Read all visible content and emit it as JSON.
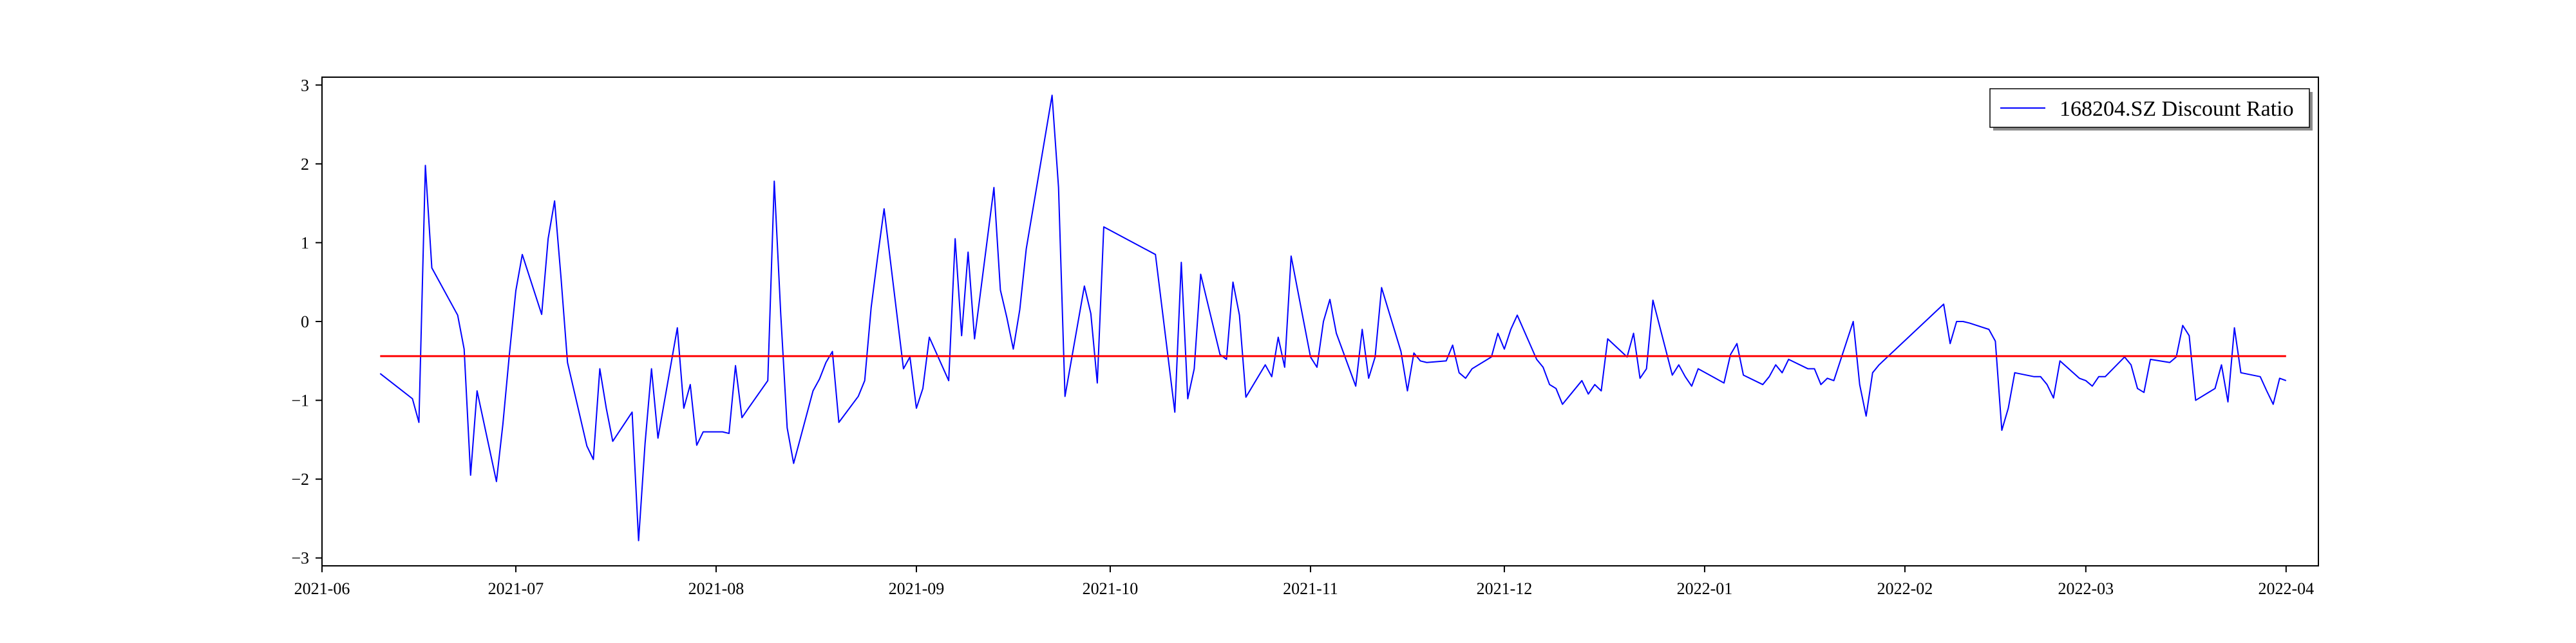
{
  "chart_data": {
    "type": "line",
    "x_axis": {
      "type": "date",
      "range": [
        "2021-06-01",
        "2022-04-06"
      ],
      "ticks": [
        "2021-06-01",
        "2021-07-01",
        "2021-08-01",
        "2021-09-01",
        "2021-10-01",
        "2021-11-01",
        "2021-12-01",
        "2022-01-01",
        "2022-02-01",
        "2022-03-01",
        "2022-04-01"
      ],
      "tick_labels": [
        "2021-06",
        "2021-07",
        "2021-08",
        "2021-09",
        "2021-10",
        "2021-11",
        "2021-12",
        "2022-01",
        "2022-02",
        "2022-03",
        "2022-04"
      ]
    },
    "y_axis": {
      "range": [
        -3.1,
        3.1
      ],
      "ticks": [
        -3,
        -2,
        -1,
        0,
        1,
        2,
        3
      ],
      "tick_labels": [
        "−3",
        "−2",
        "−1",
        "0",
        "1",
        "2",
        "3"
      ]
    },
    "grid": false,
    "legend": {
      "position": "top-right",
      "shadow": true
    },
    "series": [
      {
        "name": "168204.SZ Discount Ratio",
        "color": "#0000ff",
        "points": [
          [
            "2021-06-10",
            -0.66
          ],
          [
            "2021-06-15",
            -0.98
          ],
          [
            "2021-06-16",
            -1.28
          ],
          [
            "2021-06-17",
            1.98
          ],
          [
            "2021-06-18",
            0.68
          ],
          [
            "2021-06-22",
            0.08
          ],
          [
            "2021-06-23",
            -0.35
          ],
          [
            "2021-06-24",
            -1.95
          ],
          [
            "2021-06-25",
            -0.88
          ],
          [
            "2021-06-28",
            -2.03
          ],
          [
            "2021-06-29",
            -1.3
          ],
          [
            "2021-06-30",
            -0.42
          ],
          [
            "2021-07-01",
            0.39
          ],
          [
            "2021-07-02",
            0.85
          ],
          [
            "2021-07-05",
            0.09
          ],
          [
            "2021-07-06",
            1.05
          ],
          [
            "2021-07-07",
            1.53
          ],
          [
            "2021-07-08",
            0.55
          ],
          [
            "2021-07-09",
            -0.52
          ],
          [
            "2021-07-12",
            -1.58
          ],
          [
            "2021-07-13",
            -1.75
          ],
          [
            "2021-07-14",
            -0.6
          ],
          [
            "2021-07-15",
            -1.1
          ],
          [
            "2021-07-16",
            -1.52
          ],
          [
            "2021-07-19",
            -1.15
          ],
          [
            "2021-07-20",
            -2.78
          ],
          [
            "2021-07-21",
            -1.55
          ],
          [
            "2021-07-22",
            -0.6
          ],
          [
            "2021-07-23",
            -1.48
          ],
          [
            "2021-07-26",
            -0.08
          ],
          [
            "2021-07-27",
            -1.1
          ],
          [
            "2021-07-28",
            -0.8
          ],
          [
            "2021-07-29",
            -1.57
          ],
          [
            "2021-07-30",
            -1.4
          ],
          [
            "2021-08-02",
            -1.4
          ],
          [
            "2021-08-03",
            -1.42
          ],
          [
            "2021-08-04",
            -0.56
          ],
          [
            "2021-08-05",
            -1.22
          ],
          [
            "2021-08-06",
            -1.1
          ],
          [
            "2021-08-09",
            -0.75
          ],
          [
            "2021-08-10",
            1.78
          ],
          [
            "2021-08-11",
            0.1
          ],
          [
            "2021-08-12",
            -1.35
          ],
          [
            "2021-08-13",
            -1.8
          ],
          [
            "2021-08-16",
            -0.88
          ],
          [
            "2021-08-17",
            -0.73
          ],
          [
            "2021-08-18",
            -0.52
          ],
          [
            "2021-08-19",
            -0.38
          ],
          [
            "2021-08-20",
            -1.28
          ],
          [
            "2021-08-23",
            -0.95
          ],
          [
            "2021-08-24",
            -0.75
          ],
          [
            "2021-08-25",
            0.18
          ],
          [
            "2021-08-26",
            0.82
          ],
          [
            "2021-08-27",
            1.43
          ],
          [
            "2021-08-30",
            -0.6
          ],
          [
            "2021-08-31",
            -0.45
          ],
          [
            "2021-09-01",
            -1.1
          ],
          [
            "2021-09-02",
            -0.85
          ],
          [
            "2021-09-03",
            -0.2
          ],
          [
            "2021-09-06",
            -0.75
          ],
          [
            "2021-09-07",
            1.05
          ],
          [
            "2021-09-08",
            -0.18
          ],
          [
            "2021-09-09",
            0.88
          ],
          [
            "2021-09-10",
            -0.22
          ],
          [
            "2021-09-13",
            1.7
          ],
          [
            "2021-09-14",
            0.4
          ],
          [
            "2021-09-15",
            0.05
          ],
          [
            "2021-09-16",
            -0.35
          ],
          [
            "2021-09-17",
            0.15
          ],
          [
            "2021-09-18",
            0.92
          ],
          [
            "2021-09-22",
            2.87
          ],
          [
            "2021-09-23",
            1.7
          ],
          [
            "2021-09-24",
            -0.95
          ],
          [
            "2021-09-27",
            0.45
          ],
          [
            "2021-09-28",
            0.1
          ],
          [
            "2021-09-29",
            -0.78
          ],
          [
            "2021-09-30",
            1.2
          ],
          [
            "2021-10-08",
            0.85
          ],
          [
            "2021-10-11",
            -1.15
          ],
          [
            "2021-10-12",
            0.75
          ],
          [
            "2021-10-13",
            -0.98
          ],
          [
            "2021-10-14",
            -0.6
          ],
          [
            "2021-10-15",
            0.6
          ],
          [
            "2021-10-18",
            -0.42
          ],
          [
            "2021-10-19",
            -0.48
          ],
          [
            "2021-10-20",
            0.5
          ],
          [
            "2021-10-21",
            0.08
          ],
          [
            "2021-10-22",
            -0.96
          ],
          [
            "2021-10-25",
            -0.55
          ],
          [
            "2021-10-26",
            -0.7
          ],
          [
            "2021-10-27",
            -0.2
          ],
          [
            "2021-10-28",
            -0.58
          ],
          [
            "2021-10-29",
            0.83
          ],
          [
            "2021-11-01",
            -0.45
          ],
          [
            "2021-11-02",
            -0.58
          ],
          [
            "2021-11-03",
            0.0
          ],
          [
            "2021-11-04",
            0.28
          ],
          [
            "2021-11-05",
            -0.15
          ],
          [
            "2021-11-08",
            -0.82
          ],
          [
            "2021-11-09",
            -0.1
          ],
          [
            "2021-11-10",
            -0.72
          ],
          [
            "2021-11-11",
            -0.45
          ],
          [
            "2021-11-12",
            0.43
          ],
          [
            "2021-11-15",
            -0.38
          ],
          [
            "2021-11-16",
            -0.88
          ],
          [
            "2021-11-17",
            -0.4
          ],
          [
            "2021-11-18",
            -0.5
          ],
          [
            "2021-11-19",
            -0.52
          ],
          [
            "2021-11-22",
            -0.5
          ],
          [
            "2021-11-23",
            -0.3
          ],
          [
            "2021-11-24",
            -0.65
          ],
          [
            "2021-11-25",
            -0.72
          ],
          [
            "2021-11-26",
            -0.6
          ],
          [
            "2021-11-29",
            -0.45
          ],
          [
            "2021-11-30",
            -0.15
          ],
          [
            "2021-12-01",
            -0.35
          ],
          [
            "2021-12-02",
            -0.1
          ],
          [
            "2021-12-03",
            0.08
          ],
          [
            "2021-12-06",
            -0.48
          ],
          [
            "2021-12-07",
            -0.58
          ],
          [
            "2021-12-08",
            -0.8
          ],
          [
            "2021-12-09",
            -0.85
          ],
          [
            "2021-12-10",
            -1.05
          ],
          [
            "2021-12-13",
            -0.75
          ],
          [
            "2021-12-14",
            -0.92
          ],
          [
            "2021-12-15",
            -0.8
          ],
          [
            "2021-12-16",
            -0.88
          ],
          [
            "2021-12-17",
            -0.22
          ],
          [
            "2021-12-20",
            -0.45
          ],
          [
            "2021-12-21",
            -0.15
          ],
          [
            "2021-12-22",
            -0.72
          ],
          [
            "2021-12-23",
            -0.6
          ],
          [
            "2021-12-24",
            0.27
          ],
          [
            "2021-12-27",
            -0.68
          ],
          [
            "2021-12-28",
            -0.55
          ],
          [
            "2021-12-29",
            -0.7
          ],
          [
            "2021-12-30",
            -0.82
          ],
          [
            "2021-12-31",
            -0.6
          ],
          [
            "2022-01-04",
            -0.78
          ],
          [
            "2022-01-05",
            -0.42
          ],
          [
            "2022-01-06",
            -0.28
          ],
          [
            "2022-01-07",
            -0.68
          ],
          [
            "2022-01-10",
            -0.8
          ],
          [
            "2022-01-11",
            -0.7
          ],
          [
            "2022-01-12",
            -0.55
          ],
          [
            "2022-01-13",
            -0.65
          ],
          [
            "2022-01-14",
            -0.48
          ],
          [
            "2022-01-17",
            -0.6
          ],
          [
            "2022-01-18",
            -0.6
          ],
          [
            "2022-01-19",
            -0.8
          ],
          [
            "2022-01-20",
            -0.72
          ],
          [
            "2022-01-21",
            -0.75
          ],
          [
            "2022-01-24",
            0.0
          ],
          [
            "2022-01-25",
            -0.8
          ],
          [
            "2022-01-26",
            -1.2
          ],
          [
            "2022-01-27",
            -0.65
          ],
          [
            "2022-01-28",
            -0.55
          ],
          [
            "2022-02-07",
            0.22
          ],
          [
            "2022-02-08",
            -0.28
          ],
          [
            "2022-02-09",
            0.0
          ],
          [
            "2022-02-10",
            0.0
          ],
          [
            "2022-02-11",
            -0.02
          ],
          [
            "2022-02-14",
            -0.1
          ],
          [
            "2022-02-15",
            -0.25
          ],
          [
            "2022-02-16",
            -1.38
          ],
          [
            "2022-02-17",
            -1.1
          ],
          [
            "2022-02-18",
            -0.65
          ],
          [
            "2022-02-21",
            -0.7
          ],
          [
            "2022-02-22",
            -0.7
          ],
          [
            "2022-02-23",
            -0.8
          ],
          [
            "2022-02-24",
            -0.97
          ],
          [
            "2022-02-25",
            -0.5
          ],
          [
            "2022-02-28",
            -0.72
          ],
          [
            "2022-03-01",
            -0.75
          ],
          [
            "2022-03-02",
            -0.82
          ],
          [
            "2022-03-03",
            -0.7
          ],
          [
            "2022-03-04",
            -0.7
          ],
          [
            "2022-03-07",
            -0.45
          ],
          [
            "2022-03-08",
            -0.55
          ],
          [
            "2022-03-09",
            -0.85
          ],
          [
            "2022-03-10",
            -0.9
          ],
          [
            "2022-03-11",
            -0.48
          ],
          [
            "2022-03-14",
            -0.52
          ],
          [
            "2022-03-15",
            -0.45
          ],
          [
            "2022-03-16",
            -0.05
          ],
          [
            "2022-03-17",
            -0.18
          ],
          [
            "2022-03-18",
            -1.0
          ],
          [
            "2022-03-21",
            -0.85
          ],
          [
            "2022-03-22",
            -0.55
          ],
          [
            "2022-03-23",
            -1.02
          ],
          [
            "2022-03-24",
            -0.08
          ],
          [
            "2022-03-25",
            -0.65
          ],
          [
            "2022-03-28",
            -0.7
          ],
          [
            "2022-03-29",
            -0.88
          ],
          [
            "2022-03-30",
            -1.05
          ],
          [
            "2022-03-31",
            -0.72
          ],
          [
            "2022-04-01",
            -0.75
          ]
        ]
      }
    ],
    "reference_line": {
      "y": -0.44,
      "color": "#ff0000",
      "x_start": "2021-06-10",
      "x_end": "2022-04-01"
    }
  }
}
